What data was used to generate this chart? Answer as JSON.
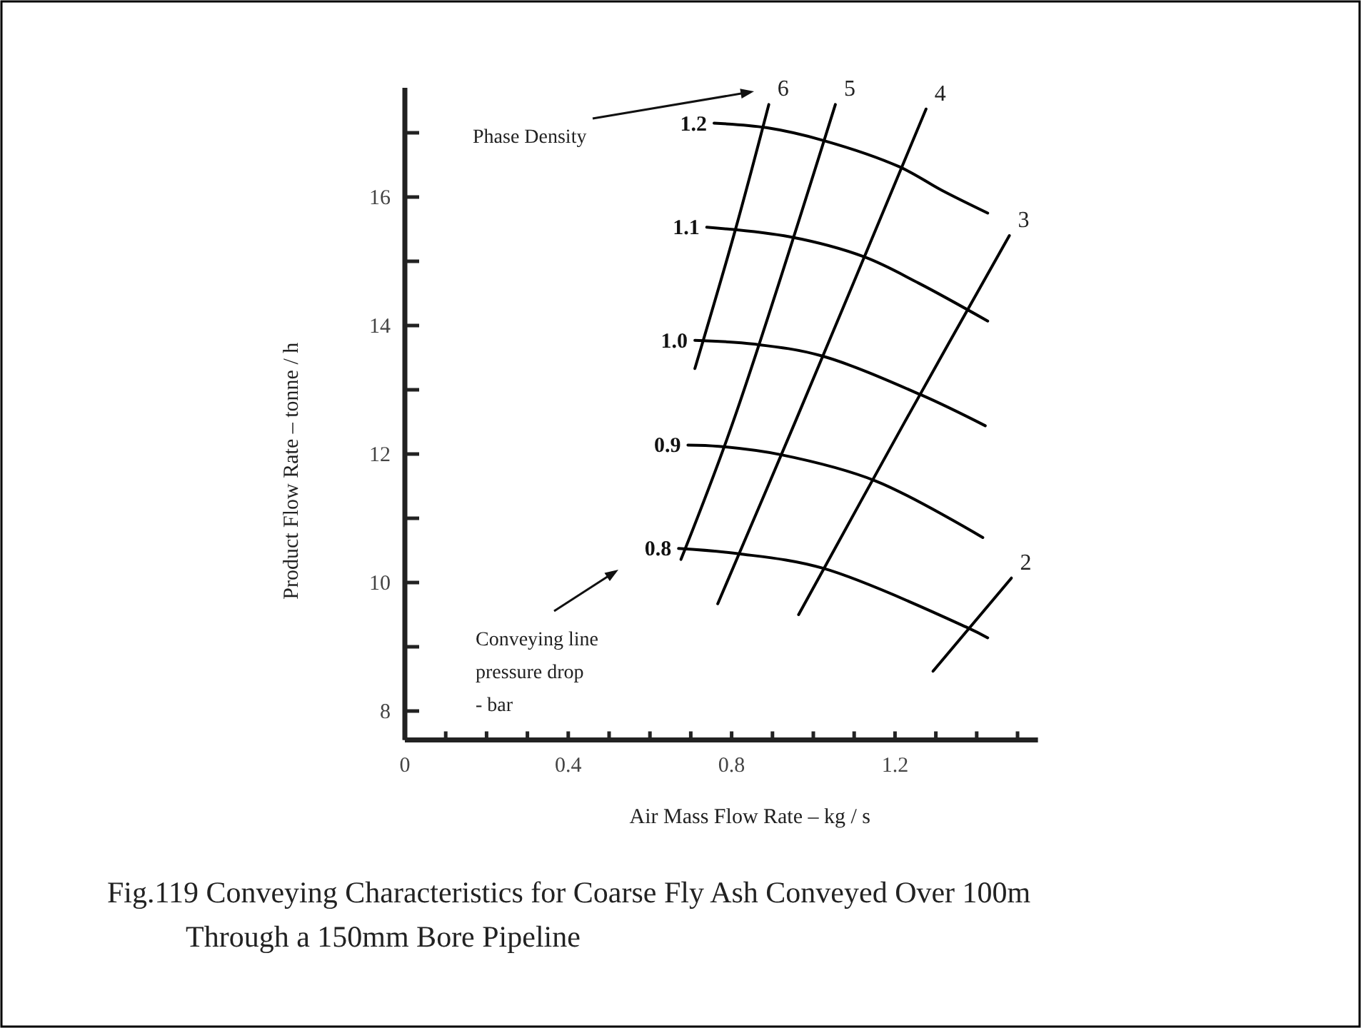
{
  "chart_data": {
    "type": "line",
    "title": "Fig.119 Conveying Characteristics for Coarse Fly Ash Conveyed Over 100m\nThrough a 150mm Bore Pipeline",
    "xlabel": "Air Mass Flow Rate  –  kg / s",
    "ylabel": "Product Flow Rate – tonne / h",
    "xlim": [
      0,
      1.55
    ],
    "ylim": [
      7.55,
      17.7
    ],
    "xticks": [
      0,
      {
        "value": 0.1,
        "label": null
      },
      {
        "value": 0.2,
        "label": null
      },
      {
        "value": 0.3,
        "label": null
      },
      0.4,
      {
        "value": 0.5,
        "label": null
      },
      {
        "value": 0.6,
        "label": null
      },
      {
        "value": 0.7,
        "label": null
      },
      0.8,
      {
        "value": 0.9,
        "label": null
      },
      {
        "value": 1.0,
        "label": null
      },
      {
        "value": 1.1,
        "label": null
      },
      1.2,
      {
        "value": 1.3,
        "label": null
      },
      {
        "value": 1.4,
        "label": null
      },
      {
        "value": 1.5,
        "label": null
      }
    ],
    "yticks": [
      8,
      {
        "value": 9,
        "label": null
      },
      10,
      {
        "value": 11,
        "label": null
      },
      12,
      {
        "value": 13,
        "label": null
      },
      14,
      {
        "value": 15,
        "label": null
      },
      16,
      {
        "value": 17,
        "label": null
      }
    ],
    "grid": false,
    "legend": false,
    "marker": "none",
    "line_style": "solid",
    "annotations": [
      "Phase Density",
      "Conveying line\npressure drop\n- bar"
    ],
    "series": [
      {
        "name": "1.2",
        "color": "#000000",
        "x": [
          0.757,
          0.885,
          1.025,
          1.211,
          1.316,
          1.427
        ],
        "values": [
          17.15,
          17.08,
          16.88,
          16.47,
          16.1,
          15.75
        ]
      },
      {
        "name": "1.1",
        "color": "#000000",
        "x": [
          0.739,
          0.943,
          1.124,
          1.258,
          1.427
        ],
        "values": [
          15.53,
          15.38,
          15.07,
          14.66,
          14.07
        ]
      },
      {
        "name": "1.0",
        "color": "#000000",
        "x": [
          0.71,
          0.856,
          1.019,
          1.264,
          1.421
        ],
        "values": [
          13.77,
          13.71,
          13.53,
          12.92,
          12.44
        ]
      },
      {
        "name": "0.9",
        "color": "#000000",
        "x": [
          0.693,
          0.769,
          0.92,
          1.153,
          1.415
        ],
        "values": [
          12.14,
          12.12,
          11.99,
          11.58,
          10.7
        ]
      },
      {
        "name": "0.8",
        "color": "#000000",
        "x": [
          0.67,
          0.815,
          1.025,
          1.38,
          1.427
        ],
        "values": [
          10.53,
          10.45,
          10.22,
          9.29,
          9.14
        ]
      },
      {
        "name": "6",
        "color": "#000000",
        "x": [
          0.71,
          0.81,
          0.891
        ],
        "values": [
          13.33,
          15.51,
          17.44
        ]
      },
      {
        "name": "5",
        "color": "#000000",
        "x": [
          0.676,
          0.803,
          1.054
        ],
        "values": [
          10.36,
          12.49,
          17.44
        ]
      },
      {
        "name": "4",
        "color": "#000000",
        "x": [
          0.766,
          0.955,
          1.276
        ],
        "values": [
          9.67,
          12.49,
          17.37
        ]
      },
      {
        "name": "3",
        "color": "#000000",
        "x": [
          0.964,
          1.223,
          1.48
        ],
        "values": [
          9.5,
          12.49,
          15.4
        ]
      },
      {
        "name": "2",
        "color": "#000000",
        "x": [
          1.293,
          1.485
        ],
        "values": [
          8.62,
          10.07
        ]
      }
    ]
  }
}
